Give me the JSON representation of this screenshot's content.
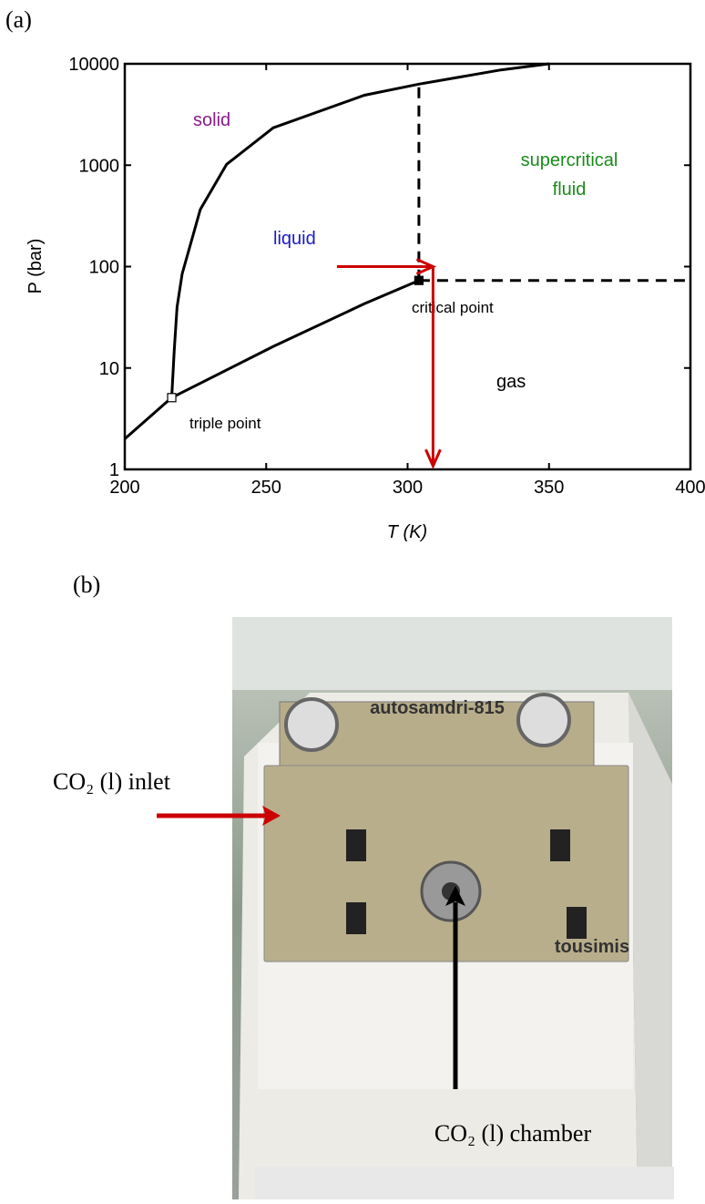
{
  "panels": {
    "a": "(a)",
    "b": "(b)"
  },
  "chart_data": {
    "type": "line",
    "xlabel": "T (K)",
    "ylabel": "P (bar)",
    "xlim": [
      200,
      400
    ],
    "ylim": [
      1,
      10000
    ],
    "log_y": true,
    "xticks": [
      200,
      250,
      300,
      350,
      400
    ],
    "yticks": [
      1,
      10,
      100,
      1000,
      10000
    ],
    "series": [
      {
        "color": "#000000",
        "style": "solid",
        "x": [
          200,
          216.6
        ],
        "values": [
          2,
          5.1
        ]
      },
      {
        "color": "#000000",
        "style": "solid",
        "x": [
          216.6,
          217.5,
          218.5,
          220.3,
          226.7,
          236,
          252.5,
          284.7,
          304,
          333,
          350
        ],
        "values": [
          5.1,
          15,
          40,
          85,
          365,
          1020,
          2340,
          4900,
          6300,
          8700,
          10000
        ]
      },
      {
        "color": "#000000",
        "style": "solid",
        "x": [
          216.6,
          252.5,
          284.7,
          304
        ],
        "values": [
          5.1,
          16.3,
          43,
          73
        ]
      },
      {
        "color": "#000000",
        "style": "dashed",
        "x": [
          304,
          304
        ],
        "values": [
          73,
          6300
        ]
      },
      {
        "color": "#000000",
        "style": "dashed",
        "x": [
          304,
          400
        ],
        "values": [
          73,
          73
        ]
      },
      {
        "color": "#cc0000",
        "style": "arrow",
        "x": [
          275,
          309
        ],
        "values": [
          100,
          100
        ]
      },
      {
        "color": "#cc0000",
        "style": "arrow",
        "x": [
          309,
          309
        ],
        "values": [
          100,
          1.08
        ]
      }
    ],
    "points": [
      {
        "x": 216.6,
        "value": 5.1,
        "fill": "#ffffff"
      },
      {
        "x": 304,
        "value": 73,
        "fill": "#000000"
      }
    ],
    "annotations": {
      "solid": "solid",
      "liquid": "liquid",
      "supercritical": "supercritical",
      "fluid": "fluid",
      "gas": "gas",
      "critical": "critical point",
      "triple": "triple point"
    }
  },
  "photo": {
    "model": "autosamdri-815",
    "brand": "tousimis",
    "inlet": "CO₂ (l) inlet",
    "chamber": "CO₂ (l) chamber"
  }
}
